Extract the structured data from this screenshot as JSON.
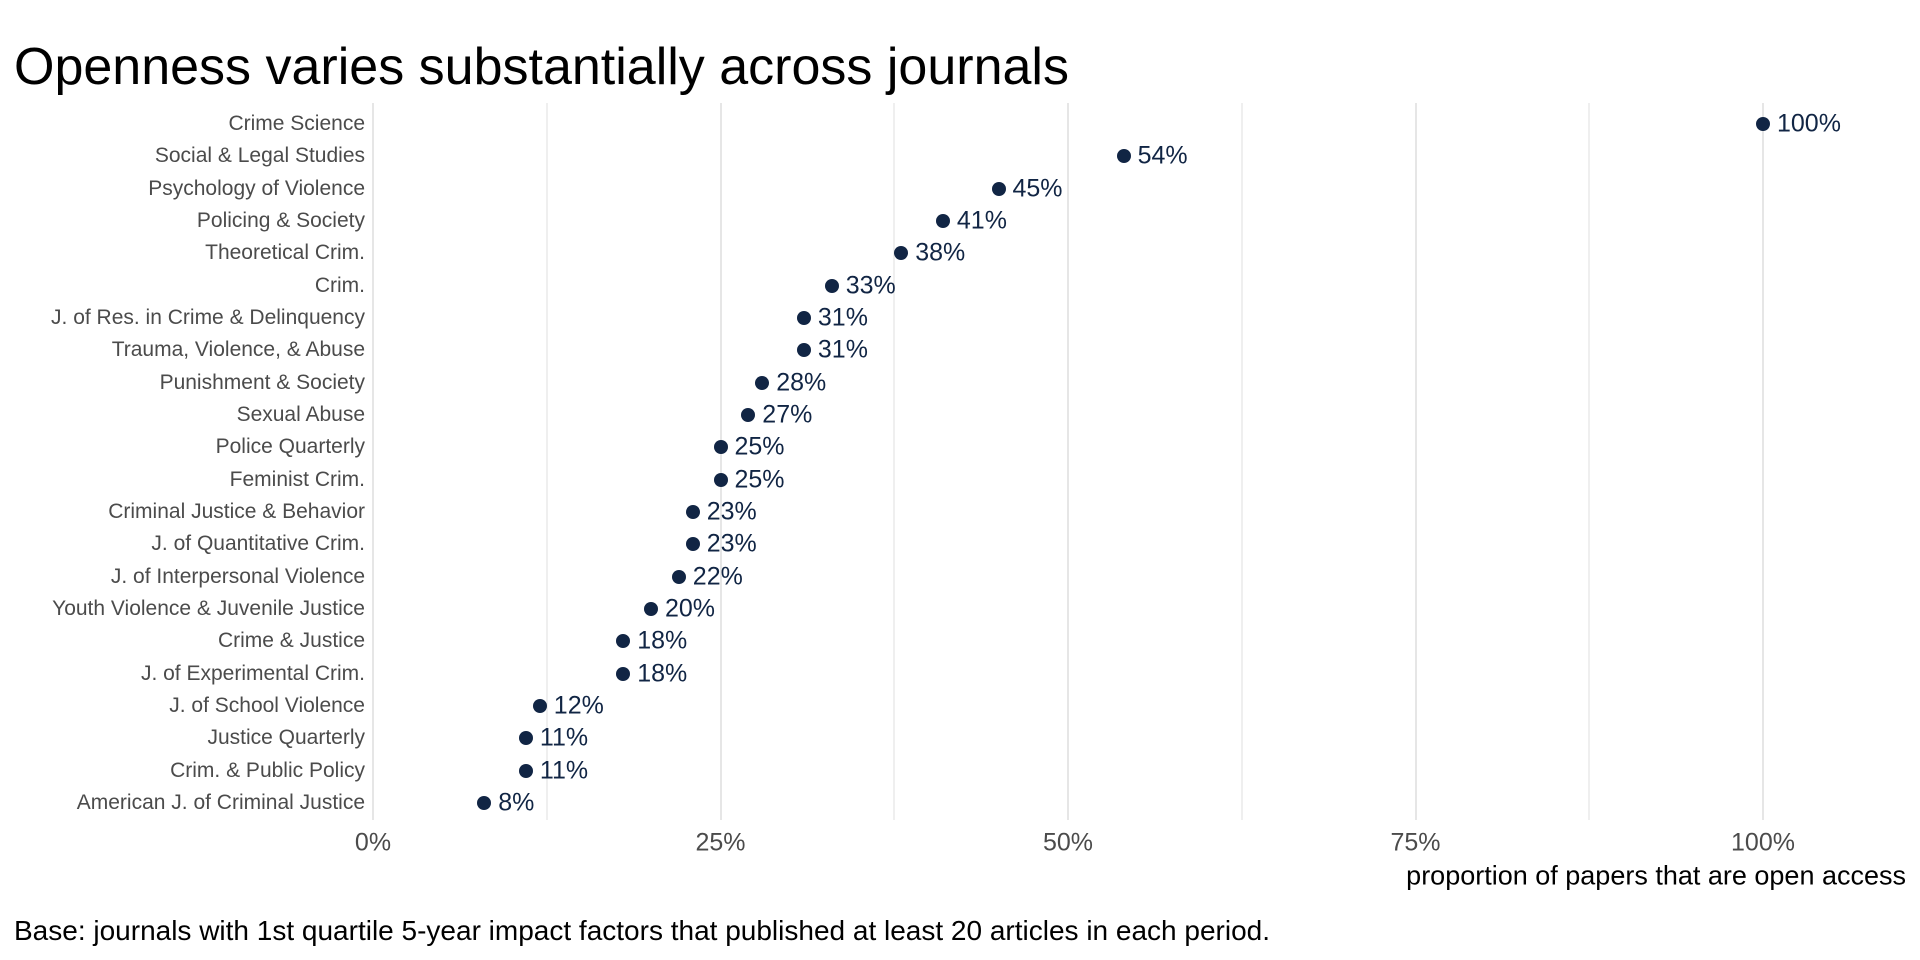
{
  "title": "Openness varies substantially across journals",
  "footnote": "Base: journals with 1st quartile 5-year impact factors that published at least 20 articles in each period.",
  "chart_data": {
    "type": "scatter",
    "subtype": "horizontal-dot-plot",
    "title": "Openness varies substantially across journals",
    "xlabel": "proportion of papers that are open access",
    "ylabel": "",
    "xlim": [
      0,
      108
    ],
    "x_major_ticks_pct": [
      0,
      25,
      50,
      75,
      100
    ],
    "x_tick_labels": [
      "0%",
      "25%",
      "50%",
      "75%",
      "100%"
    ],
    "x_minor_gridlines_pct": [
      12.5,
      37.5,
      62.5,
      87.5
    ],
    "grid": "vertical gridlines only, light gray, white background",
    "legend": "none",
    "categories": [
      "Crime Science",
      "Social & Legal Studies",
      "Psychology of Violence",
      "Policing & Society",
      "Theoretical Crim.",
      "Crim.",
      "J. of Res. in Crime & Delinquency",
      "Trauma, Violence, & Abuse",
      "Punishment & Society",
      "Sexual Abuse",
      "Police Quarterly",
      "Feminist Crim.",
      "Criminal Justice & Behavior",
      "J. of Quantitative Crim.",
      "J. of Interpersonal Violence",
      "Youth Violence & Juvenile Justice",
      "Crime & Justice",
      "J. of Experimental Crim.",
      "J. of School Violence",
      "Justice Quarterly",
      "Crim. & Public Policy",
      "American J. of Criminal Justice"
    ],
    "values": [
      100,
      54,
      45,
      41,
      38,
      33,
      31,
      31,
      28,
      27,
      25,
      25,
      23,
      23,
      22,
      20,
      18,
      18,
      12,
      11,
      11,
      8
    ],
    "value_labels": [
      "100%",
      "54%",
      "45%",
      "41%",
      "38%",
      "33%",
      "31%",
      "31%",
      "28%",
      "27%",
      "25%",
      "25%",
      "23%",
      "23%",
      "22%",
      "20%",
      "18%",
      "18%",
      "12%",
      "11%",
      "11%",
      "8%"
    ],
    "colors": {
      "dot": "#112544",
      "value_label": "#112544",
      "axis_text": "#4b4b4b",
      "gridline_major": "#e6e6e6",
      "gridline_minor": "#efefef",
      "title_text": "#000000"
    }
  }
}
